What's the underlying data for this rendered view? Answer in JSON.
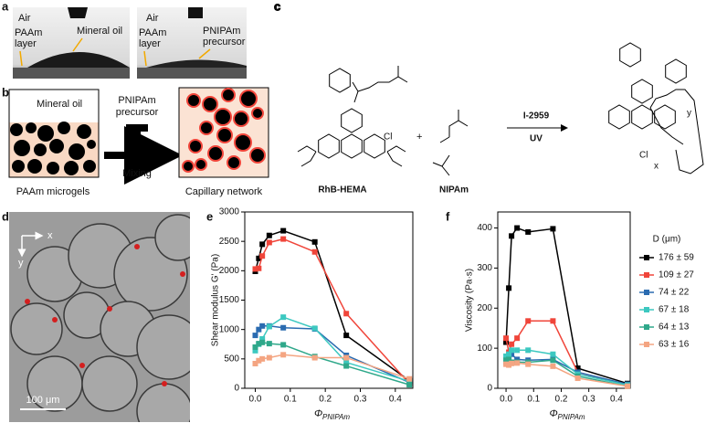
{
  "figure": {
    "a": {
      "label": "a",
      "air1": "Air",
      "air2": "Air",
      "paam_layer1": [
        "PAAm",
        "layer"
      ],
      "paam_layer2": [
        "PAAm",
        "layer"
      ],
      "oil": "Mineral oil",
      "precursor": [
        "PNIPAm",
        "precursor"
      ]
    },
    "b": {
      "label": "b",
      "oil": "Mineral oil",
      "precursor": [
        "PNIPAm",
        "precursor"
      ],
      "mixing": "Mixing",
      "microgels": "PAAm microgels",
      "network": "Capillary network"
    },
    "c": {
      "label": "c",
      "rhb": "RhB-HEMA",
      "nipam": "NIPAm",
      "plus": "+",
      "initiator": "I-2959",
      "uv": "UV",
      "cl1": "Cl",
      "cl2": "Cl",
      "x": "x",
      "y": "y"
    },
    "d": {
      "label": "d",
      "x": "x",
      "y": "y",
      "scale": "100 μm"
    },
    "e": {
      "label": "e"
    },
    "f": {
      "label": "f"
    }
  },
  "chart_data": [
    {
      "type": "line",
      "ylabel": "Shear modulus G' (Pa)",
      "xlabel": "Φ",
      "xlabel_subscript": "PNIPAm",
      "x": [
        0,
        0.01,
        0.02,
        0.04,
        0.08,
        0.17,
        0.26,
        0.44
      ],
      "xlim": [
        -0.03,
        0.45
      ],
      "ylim": [
        0,
        3000
      ],
      "xticks": [
        {
          "value": 0,
          "label": "0.0"
        },
        {
          "value": 0.1,
          "label": "0.1"
        },
        {
          "value": 0.2,
          "label": "0.2"
        },
        {
          "value": 0.3,
          "label": "0.3"
        },
        {
          "value": 0.4,
          "label": "0.4"
        }
      ],
      "yticks": [
        0,
        500,
        1000,
        1500,
        2000,
        2500,
        3000
      ],
      "series": [
        {
          "name": "176 ± 59",
          "color": "#000000",
          "values": [
            1990,
            2210,
            2450,
            2600,
            2680,
            2490,
            900,
            130
          ]
        },
        {
          "name": "109 ± 27",
          "color": "#f0453a",
          "values": [
            2030,
            2040,
            2250,
            2480,
            2540,
            2320,
            1270,
            80
          ]
        },
        {
          "name": "74 ± 22",
          "color": "#2a6bb0",
          "values": [
            900,
            1000,
            1060,
            1060,
            1030,
            1010,
            560,
            100
          ]
        },
        {
          "name": "67 ± 18",
          "color": "#3cc8c0",
          "values": [
            640,
            750,
            840,
            1050,
            1210,
            1020,
            440,
            120
          ]
        },
        {
          "name": "64 ± 13",
          "color": "#2fa88a",
          "values": [
            700,
            760,
            780,
            760,
            740,
            540,
            380,
            60
          ]
        },
        {
          "name": "63 ± 16",
          "color": "#f4a582",
          "values": [
            420,
            470,
            500,
            520,
            570,
            520,
            520,
            160
          ]
        }
      ]
    },
    {
      "type": "line",
      "ylabel": "Viscosity (Pa·s)",
      "xlabel": "Φ",
      "xlabel_subscript": "PNIPAm",
      "legend_title": "D (μm)",
      "legend": "right",
      "x": [
        0,
        0.01,
        0.02,
        0.04,
        0.08,
        0.17,
        0.26,
        0.44
      ],
      "xlim": [
        -0.03,
        0.45
      ],
      "ylim": [
        0,
        440
      ],
      "xticks": [
        {
          "value": 0,
          "label": "0.0"
        },
        {
          "value": 0.1,
          "label": "0.1"
        },
        {
          "value": 0.2,
          "label": "0.2"
        },
        {
          "value": 0.3,
          "label": "0.3"
        },
        {
          "value": 0.4,
          "label": "0.4"
        }
      ],
      "yticks": [
        0,
        100,
        200,
        300,
        400
      ],
      "series": [
        {
          "name": "176 ± 59",
          "color": "#000000",
          "values": [
            115,
            250,
            380,
            400,
            390,
            398,
            50,
            12
          ]
        },
        {
          "name": "109 ± 27",
          "color": "#f0453a",
          "values": [
            125,
            90,
            110,
            125,
            168,
            168,
            40,
            8
          ]
        },
        {
          "name": "74 ± 22",
          "color": "#2a6bb0",
          "values": [
            65,
            75,
            85,
            72,
            70,
            72,
            40,
            10
          ]
        },
        {
          "name": "67 ± 18",
          "color": "#3cc8c0",
          "values": [
            80,
            85,
            95,
            95,
            95,
            85,
            35,
            8
          ]
        },
        {
          "name": "64 ± 13",
          "color": "#2fa88a",
          "values": [
            70,
            72,
            65,
            65,
            65,
            70,
            30,
            5
          ]
        },
        {
          "name": "63 ± 16",
          "color": "#f4a582",
          "values": [
            60,
            58,
            62,
            63,
            60,
            55,
            25,
            5
          ]
        }
      ]
    }
  ]
}
